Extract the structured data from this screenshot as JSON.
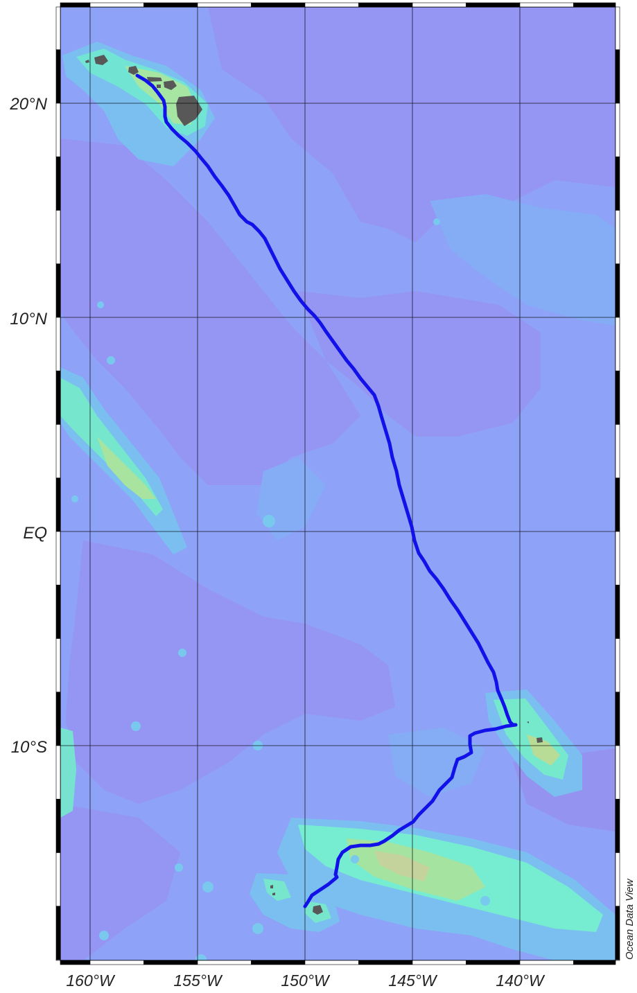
{
  "map": {
    "lon_range": [
      -161.5,
      -135.5
    ],
    "lat_range": [
      -23.5,
      24.5
    ],
    "colors": {
      "ocean_deep": "#9494f5",
      "ocean_mid": "#8aa4f8",
      "shelf_light": "#7ab6ef",
      "shoal": "#76ecd0",
      "shoal_peak": "#9ee6a8",
      "summit": "#c9d49a",
      "land": "#585858",
      "track": "#1010e6",
      "grid": "#000000",
      "frame_black": "#000000",
      "frame_white": "#ffffff"
    },
    "gridlines": {
      "lon": [
        -160,
        -155,
        -150,
        -145,
        -140
      ],
      "lat": [
        20,
        10,
        0,
        -10
      ]
    },
    "x_tick_labels": [
      "160°W",
      "155°W",
      "150°W",
      "145°W",
      "140°W"
    ],
    "y_tick_labels": [
      "20°N",
      "10°N",
      "EQ",
      "10°S"
    ],
    "credit": "Ocean Data View"
  }
}
